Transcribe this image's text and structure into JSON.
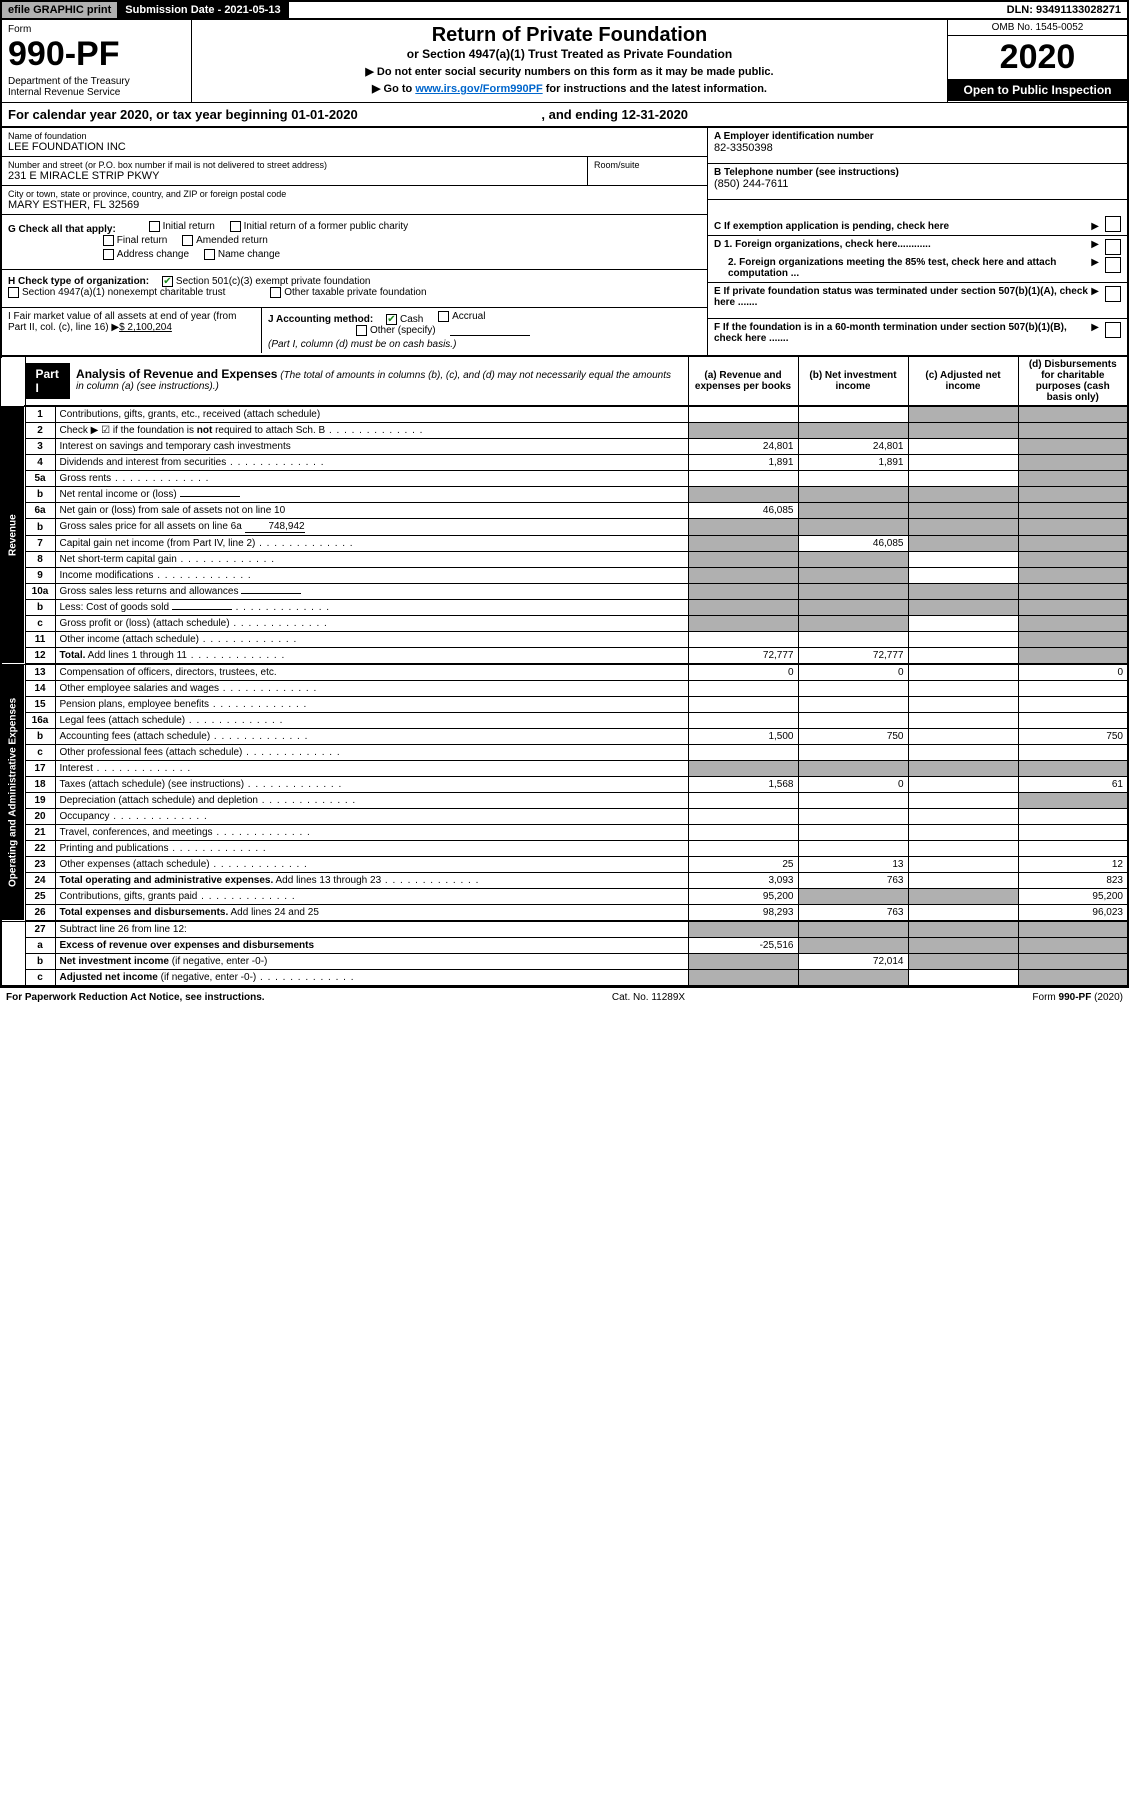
{
  "topbar": {
    "efile": "efile GRAPHIC print",
    "submission": "Submission Date - 2021-05-13",
    "dln": "DLN: 93491133028271"
  },
  "header": {
    "form_label": "Form",
    "form_num": "990-PF",
    "dept": "Department of the Treasury\nInternal Revenue Service",
    "title": "Return of Private Foundation",
    "subtitle": "or Section 4947(a)(1) Trust Treated as Private Foundation",
    "instr1": "▶ Do not enter social security numbers on this form as it may be made public.",
    "instr2_pre": "▶ Go to ",
    "instr2_link": "www.irs.gov/Form990PF",
    "instr2_post": " for instructions and the latest information.",
    "omb": "OMB No. 1545-0052",
    "year": "2020",
    "open_pub": "Open to Public Inspection"
  },
  "cal_year": {
    "text_pre": "For calendar year 2020, or tax year beginning ",
    "begin": "01-01-2020",
    "text_mid": " , and ending ",
    "end": "12-31-2020"
  },
  "entity": {
    "name_label": "Name of foundation",
    "name": "LEE FOUNDATION INC",
    "addr_label": "Number and street (or P.O. box number if mail is not delivered to street address)",
    "addr": "231 E MIRACLE STRIP PKWY",
    "room_label": "Room/suite",
    "city_label": "City or town, state or province, country, and ZIP or foreign postal code",
    "city": "MARY ESTHER, FL  32569",
    "ein_label": "A Employer identification number",
    "ein": "82-3350398",
    "phone_label": "B Telephone number (see instructions)",
    "phone": "(850) 244-7611",
    "c_label": "C If exemption application is pending, check here",
    "d1_label": "D 1. Foreign organizations, check here............",
    "d2_label": "2. Foreign organizations meeting the 85% test, check here and attach computation ...",
    "e_label": "E  If private foundation status was terminated under section 507(b)(1)(A), check here .......",
    "f_label": "F  If the foundation is in a 60-month termination under section 507(b)(1)(B), check here ......."
  },
  "g": {
    "label": "G Check all that apply:",
    "initial": "Initial return",
    "initial_former": "Initial return of a former public charity",
    "final": "Final return",
    "amended": "Amended return",
    "addr_change": "Address change",
    "name_change": "Name change"
  },
  "h": {
    "label": "H Check type of organization:",
    "sec501": "Section 501(c)(3) exempt private foundation",
    "sec4947": "Section 4947(a)(1) nonexempt charitable trust",
    "other_tax": "Other taxable private foundation"
  },
  "i": {
    "label": "I Fair market value of all assets at end of year (from Part II, col. (c), line 16) ▶",
    "value": "$  2,100,204"
  },
  "j": {
    "label": "J Accounting method:",
    "cash": "Cash",
    "accrual": "Accrual",
    "other": "Other (specify)",
    "note": "(Part I, column (d) must be on cash basis.)"
  },
  "part1": {
    "label": "Part I",
    "title": "Analysis of Revenue and Expenses",
    "desc": " (The total of amounts in columns (b), (c), and (d) may not necessarily equal the amounts in column (a) (see instructions).)",
    "col_a": "(a)   Revenue and expenses per books",
    "col_b": "(b)   Net investment income",
    "col_c": "(c)   Adjusted net income",
    "col_d": "(d)   Disbursements for charitable purposes (cash basis only)"
  },
  "revenue_label": "Revenue",
  "expenses_label": "Operating and Administrative Expenses",
  "rows": [
    {
      "n": "1",
      "desc": "Contributions, gifts, grants, etc., received (attach schedule)",
      "a": "",
      "b": "",
      "c": "s",
      "d": "s"
    },
    {
      "n": "2",
      "desc": "Check ▶ ☑ if the foundation is <b>not</b> required to attach Sch. B",
      "a": "s",
      "b": "s",
      "c": "s",
      "d": "s",
      "dots": true
    },
    {
      "n": "3",
      "desc": "Interest on savings and temporary cash investments",
      "a": "24,801",
      "b": "24,801",
      "c": "",
      "d": "s"
    },
    {
      "n": "4",
      "desc": "Dividends and interest from securities",
      "a": "1,891",
      "b": "1,891",
      "c": "",
      "d": "s",
      "dots": true
    },
    {
      "n": "5a",
      "desc": "Gross rents",
      "a": "",
      "b": "",
      "c": "",
      "d": "s",
      "dots": true
    },
    {
      "n": "b",
      "desc": "Net rental income or (loss)",
      "a": "s",
      "b": "s",
      "c": "s",
      "d": "s",
      "inline": ""
    },
    {
      "n": "6a",
      "desc": "Net gain or (loss) from sale of assets not on line 10",
      "a": "46,085",
      "b": "s",
      "c": "s",
      "d": "s"
    },
    {
      "n": "b",
      "desc": "Gross sales price for all assets on line 6a",
      "a": "s",
      "b": "s",
      "c": "s",
      "d": "s",
      "inline": "748,942"
    },
    {
      "n": "7",
      "desc": "Capital gain net income (from Part IV, line 2)",
      "a": "s",
      "b": "46,085",
      "c": "s",
      "d": "s",
      "dots": true
    },
    {
      "n": "8",
      "desc": "Net short-term capital gain",
      "a": "s",
      "b": "s",
      "c": "",
      "d": "s",
      "dots": true
    },
    {
      "n": "9",
      "desc": "Income modifications",
      "a": "s",
      "b": "s",
      "c": "",
      "d": "s",
      "dots": true
    },
    {
      "n": "10a",
      "desc": "Gross sales less returns and allowances",
      "a": "s",
      "b": "s",
      "c": "s",
      "d": "s",
      "inline": ""
    },
    {
      "n": "b",
      "desc": "Less: Cost of goods sold",
      "a": "s",
      "b": "s",
      "c": "s",
      "d": "s",
      "dots": true,
      "inline": ""
    },
    {
      "n": "c",
      "desc": "Gross profit or (loss) (attach schedule)",
      "a": "s",
      "b": "s",
      "c": "",
      "d": "s",
      "dots": true
    },
    {
      "n": "11",
      "desc": "Other income (attach schedule)",
      "a": "",
      "b": "",
      "c": "",
      "d": "s",
      "dots": true
    },
    {
      "n": "12",
      "desc": "<b>Total.</b> Add lines 1 through 11",
      "a": "72,777",
      "b": "72,777",
      "c": "",
      "d": "s",
      "dots": true
    }
  ],
  "exp_rows": [
    {
      "n": "13",
      "desc": "Compensation of officers, directors, trustees, etc.",
      "a": "0",
      "b": "0",
      "c": "",
      "d": "0"
    },
    {
      "n": "14",
      "desc": "Other employee salaries and wages",
      "a": "",
      "b": "",
      "c": "",
      "d": "",
      "dots": true
    },
    {
      "n": "15",
      "desc": "Pension plans, employee benefits",
      "a": "",
      "b": "",
      "c": "",
      "d": "",
      "dots": true
    },
    {
      "n": "16a",
      "desc": "Legal fees (attach schedule)",
      "a": "",
      "b": "",
      "c": "",
      "d": "",
      "dots": true
    },
    {
      "n": "b",
      "desc": "Accounting fees (attach schedule)",
      "a": "1,500",
      "b": "750",
      "c": "",
      "d": "750",
      "dots": true
    },
    {
      "n": "c",
      "desc": "Other professional fees (attach schedule)",
      "a": "",
      "b": "",
      "c": "",
      "d": "",
      "dots": true
    },
    {
      "n": "17",
      "desc": "Interest",
      "a": "s",
      "b": "s",
      "c": "s",
      "d": "s",
      "dots": true
    },
    {
      "n": "18",
      "desc": "Taxes (attach schedule) (see instructions)",
      "a": "1,568",
      "b": "0",
      "c": "",
      "d": "61",
      "dots": true
    },
    {
      "n": "19",
      "desc": "Depreciation (attach schedule) and depletion",
      "a": "",
      "b": "",
      "c": "",
      "d": "s",
      "dots": true
    },
    {
      "n": "20",
      "desc": "Occupancy",
      "a": "",
      "b": "",
      "c": "",
      "d": "",
      "dots": true
    },
    {
      "n": "21",
      "desc": "Travel, conferences, and meetings",
      "a": "",
      "b": "",
      "c": "",
      "d": "",
      "dots": true
    },
    {
      "n": "22",
      "desc": "Printing and publications",
      "a": "",
      "b": "",
      "c": "",
      "d": "",
      "dots": true
    },
    {
      "n": "23",
      "desc": "Other expenses (attach schedule)",
      "a": "25",
      "b": "13",
      "c": "",
      "d": "12",
      "dots": true
    },
    {
      "n": "24",
      "desc": "<b>Total operating and administrative expenses.</b> Add lines 13 through 23",
      "a": "3,093",
      "b": "763",
      "c": "",
      "d": "823",
      "dots": true
    },
    {
      "n": "25",
      "desc": "Contributions, gifts, grants paid",
      "a": "95,200",
      "b": "s",
      "c": "s",
      "d": "95,200",
      "dots": true
    },
    {
      "n": "26",
      "desc": "<b>Total expenses and disbursements.</b> Add lines 24 and 25",
      "a": "98,293",
      "b": "763",
      "c": "",
      "d": "96,023"
    }
  ],
  "final_rows": [
    {
      "n": "27",
      "desc": "Subtract line 26 from line 12:",
      "a": "s",
      "b": "s",
      "c": "s",
      "d": "s"
    },
    {
      "n": "a",
      "desc": "<b>Excess of revenue over expenses and disbursements</b>",
      "a": "-25,516",
      "b": "s",
      "c": "s",
      "d": "s"
    },
    {
      "n": "b",
      "desc": "<b>Net investment income</b> (if negative, enter -0-)",
      "a": "s",
      "b": "72,014",
      "c": "s",
      "d": "s"
    },
    {
      "n": "c",
      "desc": "<b>Adjusted net income</b> (if negative, enter -0-)",
      "a": "s",
      "b": "s",
      "c": "",
      "d": "s",
      "dots": true
    }
  ],
  "footer": {
    "left": "For Paperwork Reduction Act Notice, see instructions.",
    "mid": "Cat. No. 11289X",
    "right": "Form 990-PF (2020)"
  }
}
